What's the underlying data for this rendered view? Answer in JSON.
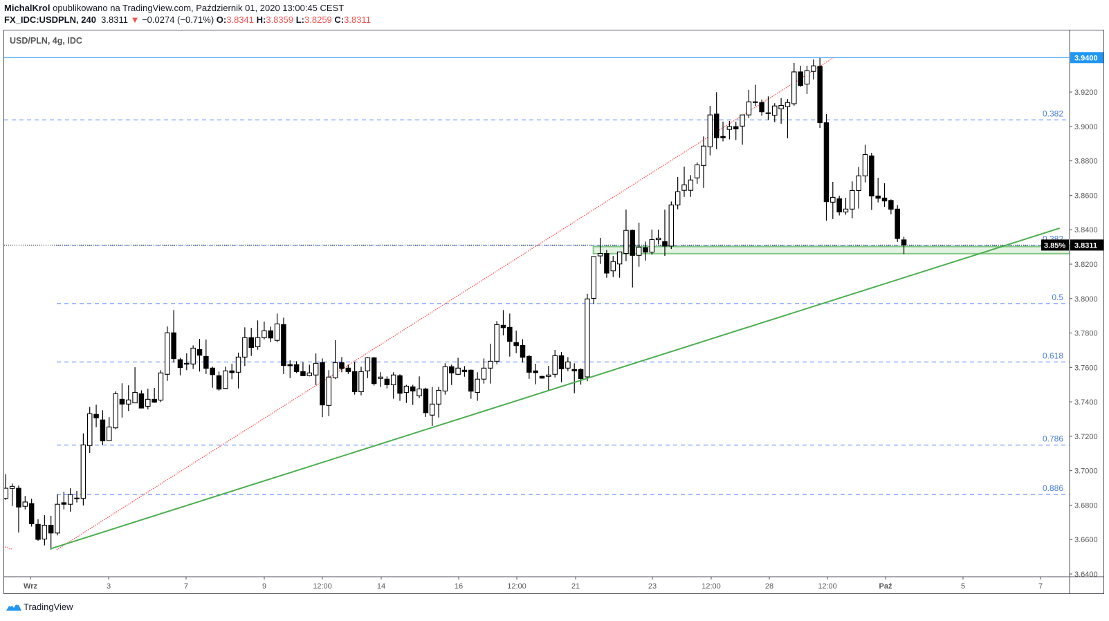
{
  "header": {
    "author": "MichalKrol",
    "published": "opublikowano na TradingView.com, Październik 01, 2020 13:00:45 CEST",
    "symbol": "FX_IDC:USDPLN, 240",
    "last": "3.8311",
    "change": "−0.0274 (−0.71%)",
    "o_label": "O:",
    "o": "3.8341",
    "h_label": "H:",
    "h": "3.8359",
    "l_label": "L:",
    "l": "3.8259",
    "c_label": "C:",
    "c": "3.8311"
  },
  "legend": "USD/PLN, 4g, IDC",
  "footer": {
    "brand": "TradingView"
  },
  "colors": {
    "bull": "#ffffff",
    "bear": "#000000",
    "fib": "#2962ff",
    "hline": "#2196f3",
    "trend": "#4caf50",
    "red_trend": "#ff5252",
    "down": "#ef5350",
    "zone": "#e4f3e1"
  },
  "chart_data": {
    "type": "candlestick",
    "symbol": "USD/PLN",
    "interval": "4g",
    "ylim": [
      3.64,
      3.94
    ],
    "y_ticks": [
      "3.6400",
      "3.6600",
      "3.6800",
      "3.7000",
      "3.7200",
      "3.7400",
      "3.7600",
      "3.7800",
      "3.8000",
      "3.8200",
      "3.8400",
      "3.8600",
      "3.8800",
      "3.9000",
      "3.9200"
    ],
    "x_ticks": [
      "Wrz",
      "3",
      "7",
      "9",
      "12:00",
      "14",
      "16",
      "12:00",
      "21",
      "23",
      "12:00",
      "28",
      "12:00",
      "Paź",
      "5",
      "7"
    ],
    "price_label": "3.8311",
    "percent_label": "3.85%",
    "hline_label": "3.9400",
    "hline": 3.94,
    "fib_levels": [
      {
        "label": "0.382",
        "price": 3.9038
      },
      {
        "label": "0.382",
        "price": 3.831
      },
      {
        "label": "0.5",
        "price": 3.7971
      },
      {
        "label": "0.618",
        "price": 3.7632
      },
      {
        "label": "0.786",
        "price": 3.7149
      },
      {
        "label": "0.886",
        "price": 3.6862
      }
    ],
    "zone": [
      3.8261,
      3.8302
    ],
    "green_trendline": [
      3.6546,
      3.8409
    ],
    "red_trendline": [
      3.654,
      3.94
    ],
    "candles_ohlc": [
      [
        3.6839,
        3.6979,
        3.6831,
        3.6898
      ],
      [
        3.6897,
        3.6925,
        3.6795,
        3.6909
      ],
      [
        3.6898,
        3.6914,
        3.6641,
        3.6789
      ],
      [
        3.6793,
        3.6853,
        3.6775,
        3.6818
      ],
      [
        3.6809,
        3.6837,
        3.6675,
        3.6692
      ],
      [
        3.6688,
        3.6718,
        3.6593,
        3.6601
      ],
      [
        3.6603,
        3.6742,
        3.6566,
        3.6683
      ],
      [
        3.6683,
        3.6738,
        3.6541,
        3.6638
      ],
      [
        3.6638,
        3.6862,
        3.6624,
        3.6805
      ],
      [
        3.6814,
        3.6878,
        3.6775,
        3.6805
      ],
      [
        3.6805,
        3.6898,
        3.6762,
        3.6861
      ],
      [
        3.6841,
        3.6882,
        3.6815,
        3.6841
      ],
      [
        3.6839,
        3.7217,
        3.6798,
        3.715
      ],
      [
        3.7146,
        3.7371,
        3.7103,
        3.7331
      ],
      [
        3.7327,
        3.7384,
        3.7253,
        3.7307
      ],
      [
        3.7295,
        3.7351,
        3.715,
        3.7173
      ],
      [
        3.7174,
        3.7311,
        3.7174,
        3.7254
      ],
      [
        3.7249,
        3.7461,
        3.7241,
        3.7447
      ],
      [
        3.7415,
        3.7508,
        3.7309,
        3.7387
      ],
      [
        3.7387,
        3.7496,
        3.7347,
        3.7411
      ],
      [
        3.7394,
        3.7601,
        3.7394,
        3.7455
      ],
      [
        3.7447,
        3.7467,
        3.7364,
        3.7364
      ],
      [
        3.7374,
        3.7477,
        3.7356,
        3.7415
      ],
      [
        3.7415,
        3.7481,
        3.7394,
        3.7398
      ],
      [
        3.741,
        3.7584,
        3.7398,
        3.7568
      ],
      [
        3.756,
        3.7838,
        3.7522,
        3.7801
      ],
      [
        3.7801,
        3.7933,
        3.7628,
        3.7651
      ],
      [
        3.7645,
        3.7656,
        3.7554,
        3.7599
      ],
      [
        3.7624,
        3.7682,
        3.7584,
        3.7619
      ],
      [
        3.762,
        3.7728,
        3.7591,
        3.7712
      ],
      [
        3.7704,
        3.7766,
        3.7576,
        3.7671
      ],
      [
        3.7664,
        3.7762,
        3.7562,
        3.7595
      ],
      [
        3.7596,
        3.7605,
        3.7482,
        3.7558
      ],
      [
        3.7552,
        3.7576,
        3.7465,
        3.7474
      ],
      [
        3.7478,
        3.7605,
        3.7475,
        3.758
      ],
      [
        3.758,
        3.7621,
        3.7532,
        3.757
      ],
      [
        3.7572,
        3.7686,
        3.7478,
        3.766
      ],
      [
        3.766,
        3.7833,
        3.7608,
        3.7773
      ],
      [
        3.7773,
        3.783,
        3.7667,
        3.7716
      ],
      [
        3.772,
        3.7873,
        3.7703,
        3.7773
      ],
      [
        3.7773,
        3.7866,
        3.7763,
        3.7813
      ],
      [
        3.7813,
        3.7837,
        3.7746,
        3.7771
      ],
      [
        3.7757,
        3.7913,
        3.7747,
        3.7853
      ],
      [
        3.7849,
        3.7889,
        3.7562,
        3.7611
      ],
      [
        3.7616,
        3.7641,
        3.7538,
        3.761
      ],
      [
        3.7616,
        3.7636,
        3.7568,
        3.7576
      ],
      [
        3.7576,
        3.7629,
        3.7552,
        3.7552
      ],
      [
        3.7552,
        3.7616,
        3.7548,
        3.7568
      ],
      [
        3.7556,
        3.7681,
        3.7498,
        3.7624
      ],
      [
        3.7628,
        3.7652,
        3.7311,
        3.7382
      ],
      [
        3.7379,
        3.7584,
        3.7317,
        3.7544
      ],
      [
        3.754,
        3.7758,
        3.7532,
        3.7628
      ],
      [
        3.7628,
        3.766,
        3.7572,
        3.7594
      ],
      [
        3.7596,
        3.7616,
        3.7562,
        3.7576
      ],
      [
        3.7576,
        3.7632,
        3.7442,
        3.7459
      ],
      [
        3.7459,
        3.7604,
        3.7438,
        3.7576
      ],
      [
        3.758,
        3.766,
        3.7538,
        3.7656
      ],
      [
        3.7656,
        3.766,
        3.7495,
        3.7506
      ],
      [
        3.7536,
        3.7572,
        3.7486,
        3.7544
      ],
      [
        3.7532,
        3.7548,
        3.7478,
        3.7499
      ],
      [
        3.7499,
        3.7572,
        3.7418,
        3.7556
      ],
      [
        3.7552,
        3.756,
        3.7406,
        3.745
      ],
      [
        3.7455,
        3.7499,
        3.7394,
        3.7491
      ],
      [
        3.7487,
        3.7499,
        3.7382,
        3.7463
      ],
      [
        3.7435,
        3.7548,
        3.7422,
        3.7475
      ],
      [
        3.7475,
        3.7482,
        3.7312,
        3.7337
      ],
      [
        3.7323,
        3.7487,
        3.726,
        3.7387
      ],
      [
        3.7387,
        3.7487,
        3.7309,
        3.7467
      ],
      [
        3.7463,
        3.7624,
        3.7442,
        3.7604
      ],
      [
        3.7604,
        3.7616,
        3.7498,
        3.7568
      ],
      [
        3.756,
        3.7656,
        3.7556,
        3.7596
      ],
      [
        3.7584,
        3.7608,
        3.7546,
        3.7576
      ],
      [
        3.7584,
        3.7588,
        3.7418,
        3.7462
      ],
      [
        3.7455,
        3.7572,
        3.7406,
        3.7532
      ],
      [
        3.7532,
        3.7652,
        3.7506,
        3.7596
      ],
      [
        3.7596,
        3.7738,
        3.7506,
        3.7636
      ],
      [
        3.7636,
        3.7869,
        3.7619,
        3.7849
      ],
      [
        3.7845,
        3.7933,
        3.7786,
        3.7831
      ],
      [
        3.7833,
        3.7913,
        3.7663,
        3.7751
      ],
      [
        3.7744,
        3.7814,
        3.7683,
        3.7727
      ],
      [
        3.7728,
        3.7764,
        3.7628,
        3.7659
      ],
      [
        3.7664,
        3.7672,
        3.7534,
        3.7572
      ],
      [
        3.758,
        3.7621,
        3.7502,
        3.757
      ],
      [
        3.7548,
        3.7552,
        3.7534,
        3.7538
      ],
      [
        3.7548,
        3.7609,
        3.7462,
        3.7556
      ],
      [
        3.756,
        3.7702,
        3.7542,
        3.7668
      ],
      [
        3.7668,
        3.769,
        3.7514,
        3.7592
      ],
      [
        3.7596,
        3.766,
        3.7578,
        3.7632
      ],
      [
        3.7588,
        3.7624,
        3.745,
        3.758
      ],
      [
        3.7588,
        3.7595,
        3.75,
        3.7535
      ],
      [
        3.7545,
        3.8028,
        3.752,
        3.7998
      ],
      [
        3.8001,
        3.8244,
        3.7967,
        3.8244
      ],
      [
        3.8248,
        3.8353,
        3.8201,
        3.8262
      ],
      [
        3.8262,
        3.8282,
        3.8121,
        3.8148
      ],
      [
        3.8161,
        3.8248,
        3.8125,
        3.8215
      ],
      [
        3.8201,
        3.8271,
        3.8121,
        3.8271
      ],
      [
        3.8262,
        3.8517,
        3.8218,
        3.8396
      ],
      [
        3.8396,
        3.8401,
        3.8065,
        3.8251
      ],
      [
        3.8251,
        3.8441,
        3.8185,
        3.8299
      ],
      [
        3.8296,
        3.8331,
        3.8221,
        3.827
      ],
      [
        3.827,
        3.8401,
        3.8255,
        3.8343
      ],
      [
        3.8342,
        3.8401,
        3.8315,
        3.8351
      ],
      [
        3.8331,
        3.8517,
        3.8248,
        3.8305
      ],
      [
        3.8305,
        3.8564,
        3.8288,
        3.8544
      ],
      [
        3.8544,
        3.8706,
        3.8519,
        3.8621
      ],
      [
        3.8629,
        3.8767,
        3.8591,
        3.8661
      ],
      [
        3.8629,
        3.8717,
        3.8591,
        3.8689
      ],
      [
        3.8701,
        3.8791,
        3.8667,
        3.8777
      ],
      [
        3.8773,
        3.8942,
        3.8643,
        3.8886
      ],
      [
        3.8882,
        3.912,
        3.8832,
        3.9067
      ],
      [
        3.9072,
        3.9199,
        3.8868,
        3.8934
      ],
      [
        3.8942,
        3.9028,
        3.8913,
        3.8934
      ],
      [
        3.8983,
        3.9032,
        3.8925,
        3.8999
      ],
      [
        3.8999,
        3.9028,
        3.8921,
        3.8986
      ],
      [
        3.9002,
        3.9067,
        3.8894,
        3.9067
      ],
      [
        3.9067,
        3.9213,
        3.9049,
        3.9143
      ],
      [
        3.9143,
        3.9242,
        3.9119,
        3.9143
      ],
      [
        3.9139,
        3.9156,
        3.9062,
        3.9085
      ],
      [
        3.9079,
        3.9175,
        3.9038,
        3.9079
      ],
      [
        3.9065,
        3.9135,
        3.9025,
        3.9119
      ],
      [
        3.9102,
        3.9164,
        3.9016,
        3.9122
      ],
      [
        3.9115,
        3.9159,
        3.8931,
        3.9139
      ],
      [
        3.9132,
        3.9369,
        3.9121,
        3.9317
      ],
      [
        3.9317,
        3.9353,
        3.923,
        3.9238
      ],
      [
        3.9246,
        3.9353,
        3.9188,
        3.9324
      ],
      [
        3.932,
        3.9389,
        3.9273,
        3.9352
      ],
      [
        3.9349,
        3.9397,
        3.8991,
        3.9022
      ],
      [
        3.9022,
        3.9072,
        3.8453,
        3.8563
      ],
      [
        3.856,
        3.8678,
        3.8462,
        3.8588
      ],
      [
        3.858,
        3.8598,
        3.8483,
        3.8503
      ],
      [
        3.8503,
        3.8586,
        3.8487,
        3.852
      ],
      [
        3.852,
        3.8681,
        3.8467,
        3.8628
      ],
      [
        3.8628,
        3.8765,
        3.8523,
        3.8713
      ],
      [
        3.8713,
        3.8894,
        3.8675,
        3.8837
      ],
      [
        3.8829,
        3.8847,
        3.8515,
        3.8596
      ],
      [
        3.8596,
        3.8702,
        3.8559,
        3.8583
      ],
      [
        3.8584,
        3.867,
        3.8533,
        3.8567
      ],
      [
        3.857,
        3.8576,
        3.8489,
        3.8519
      ],
      [
        3.852,
        3.8543,
        3.8329,
        3.8349
      ],
      [
        3.8341,
        3.8359,
        3.8259,
        3.8311
      ]
    ]
  }
}
